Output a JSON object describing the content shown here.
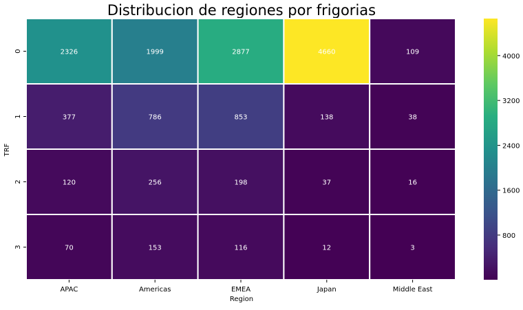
{
  "chart_data": {
    "type": "heatmap",
    "title": "Distribucion de regiones por frigorias",
    "xlabel": "Region",
    "ylabel": "TRF",
    "x_categories": [
      "APAC",
      "Americas",
      "EMEA",
      "Japan",
      "Middle East"
    ],
    "y_categories": [
      "0",
      "1",
      "2",
      "3"
    ],
    "values": [
      [
        2326,
        1999,
        2877,
        4660,
        109
      ],
      [
        377,
        786,
        853,
        138,
        38
      ],
      [
        120,
        256,
        198,
        37,
        16
      ],
      [
        70,
        153,
        116,
        12,
        3
      ]
    ],
    "colormap": "viridis",
    "value_range": [
      3,
      4660
    ],
    "colorbar_ticks": [
      "800",
      "1600",
      "2400",
      "3200",
      "4000"
    ],
    "annotation_color": "#ffffff",
    "cell_border_color": "#ffffff"
  }
}
